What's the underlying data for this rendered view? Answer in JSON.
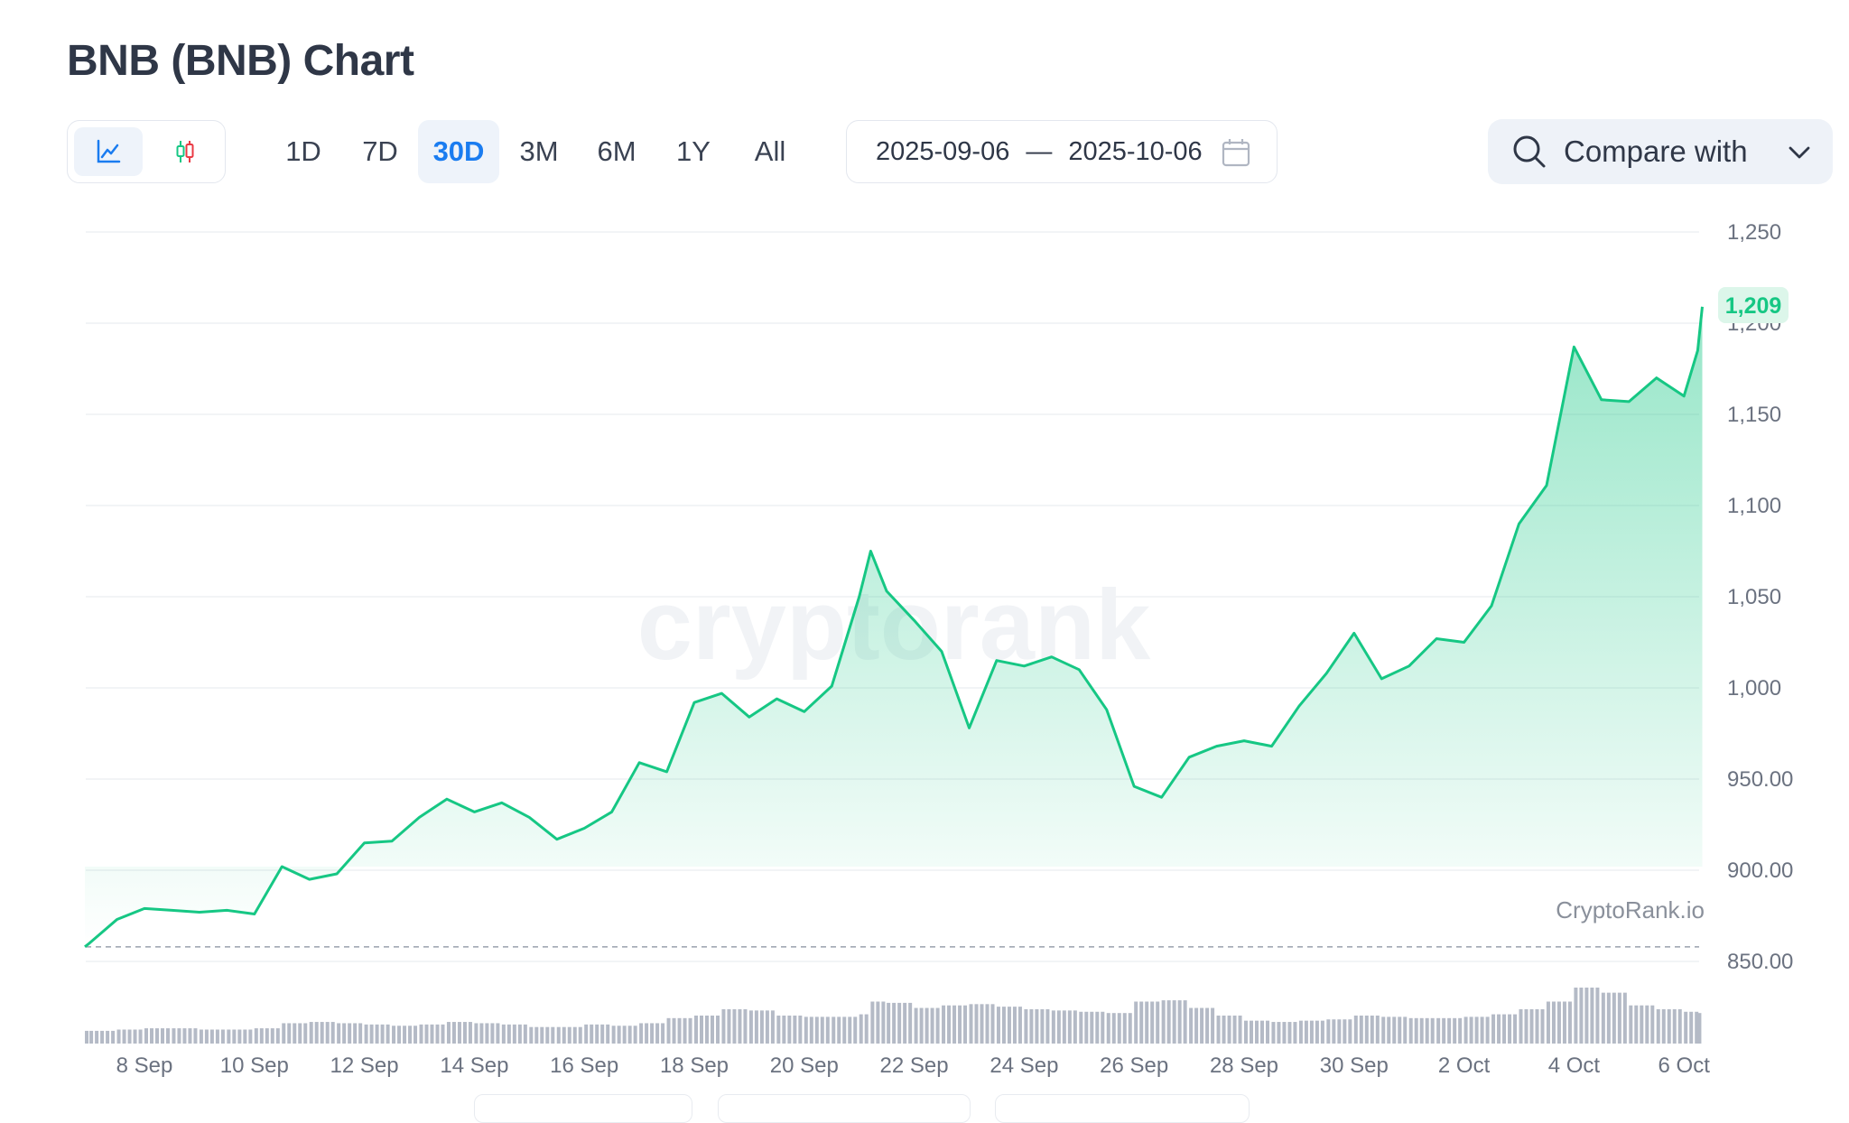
{
  "header": {
    "title": "BNB (BNB) Chart"
  },
  "chart_type_toggle": [
    {
      "id": "line",
      "icon": "line-chart-icon",
      "active": true
    },
    {
      "id": "candles",
      "icon": "candlestick-icon",
      "active": false
    }
  ],
  "periods": [
    {
      "label": "1D",
      "active": false
    },
    {
      "label": "7D",
      "active": false
    },
    {
      "label": "30D",
      "active": true
    },
    {
      "label": "3M",
      "active": false
    },
    {
      "label": "6M",
      "active": false
    },
    {
      "label": "1Y",
      "active": false
    },
    {
      "label": "All",
      "active": false
    }
  ],
  "date_range": {
    "from": "2025-09-06",
    "separator": "—",
    "to": "2025-10-06",
    "icon": "calendar-icon"
  },
  "compare": {
    "label": "Compare with",
    "icon": "search-icon",
    "chevron": "chevron-down-icon"
  },
  "colors": {
    "accent": "#1a7cf0",
    "line": "#16c784",
    "volume": "#b4bac6",
    "up": "#16c784",
    "down": "#ea3943"
  },
  "watermark": "cryptorank",
  "attribution": "CryptoRank.io",
  "chart_data": {
    "type": "area",
    "ylim": [
      850,
      1250
    ],
    "yticks": [
      "1,250",
      "1,200",
      "1,150",
      "1,100",
      "1,050",
      "1,000",
      "950.00",
      "900.00",
      "850.00"
    ],
    "ytick_values": [
      1250,
      1200,
      1150,
      1100,
      1050,
      1000,
      950,
      900,
      850
    ],
    "xticks": [
      "8 Sep",
      "10 Sep",
      "12 Sep",
      "14 Sep",
      "16 Sep",
      "18 Sep",
      "20 Sep",
      "22 Sep",
      "24 Sep",
      "26 Sep",
      "28 Sep",
      "30 Sep",
      "2 Oct",
      "4 Oct",
      "6 Oct"
    ],
    "xtick_dates": [
      "2025-09-08",
      "2025-09-10",
      "2025-09-12",
      "2025-09-14",
      "2025-09-16",
      "2025-09-18",
      "2025-09-20",
      "2025-09-22",
      "2025-09-24",
      "2025-09-26",
      "2025-09-28",
      "2025-09-30",
      "2025-10-02",
      "2025-10-04",
      "2025-10-06"
    ],
    "grid": true,
    "baseline_price": 858,
    "current_price_label": "1,209",
    "current_price": 1209,
    "x": [
      "2025-09-06T22:00",
      "2025-09-07T00:00",
      "2025-09-07T12:00",
      "2025-09-08T00:00",
      "2025-09-08T12:00",
      "2025-09-09T00:00",
      "2025-09-09T12:00",
      "2025-09-10T00:00",
      "2025-09-10T12:00",
      "2025-09-11T00:00",
      "2025-09-11T12:00",
      "2025-09-12T00:00",
      "2025-09-12T12:00",
      "2025-09-13T00:00",
      "2025-09-13T12:00",
      "2025-09-14T00:00",
      "2025-09-14T12:00",
      "2025-09-15T00:00",
      "2025-09-15T12:00",
      "2025-09-16T00:00",
      "2025-09-16T12:00",
      "2025-09-17T00:00",
      "2025-09-17T12:00",
      "2025-09-18T00:00",
      "2025-09-18T12:00",
      "2025-09-19T00:00",
      "2025-09-19T12:00",
      "2025-09-20T00:00",
      "2025-09-20T12:00",
      "2025-09-21T00:00",
      "2025-09-21T05:00",
      "2025-09-21T12:00",
      "2025-09-22T00:00",
      "2025-09-22T12:00",
      "2025-09-23T00:00",
      "2025-09-23T12:00",
      "2025-09-24T00:00",
      "2025-09-24T12:00",
      "2025-09-25T00:00",
      "2025-09-25T12:00",
      "2025-09-26T00:00",
      "2025-09-26T12:00",
      "2025-09-27T00:00",
      "2025-09-27T12:00",
      "2025-09-28T00:00",
      "2025-09-28T12:00",
      "2025-09-29T00:00",
      "2025-09-29T12:00",
      "2025-09-30T00:00",
      "2025-09-30T12:00",
      "2025-10-01T00:00",
      "2025-10-01T12:00",
      "2025-10-02T00:00",
      "2025-10-02T12:00",
      "2025-10-03T00:00",
      "2025-10-03T12:00",
      "2025-10-04T00:00",
      "2025-10-04T12:00",
      "2025-10-05T00:00",
      "2025-10-05T12:00",
      "2025-10-06T00:00",
      "2025-10-06T06:00",
      "2025-10-06T08:00"
    ],
    "y": [
      858,
      860,
      873,
      879,
      878,
      877,
      878,
      876,
      902,
      895,
      898,
      915,
      916,
      929,
      939,
      932,
      937,
      929,
      917,
      923,
      932,
      959,
      954,
      992,
      997,
      984,
      994,
      987,
      1001,
      1050,
      1075,
      1053,
      1037,
      1020,
      978,
      1015,
      1012,
      1017,
      1010,
      988,
      946,
      940,
      962,
      968,
      971,
      968,
      990,
      1008,
      1030,
      1005,
      1012,
      1027,
      1025,
      1045,
      1090,
      1111,
      1187,
      1158,
      1157,
      1170,
      1160,
      1185,
      1209
    ],
    "volume_relative": [
      10,
      10,
      11,
      12,
      12,
      11,
      11,
      12,
      16,
      17,
      16,
      15,
      14,
      15,
      17,
      16,
      15,
      13,
      13,
      15,
      14,
      16,
      20,
      22,
      27,
      26,
      22,
      21,
      21,
      23,
      33,
      32,
      28,
      30,
      31,
      29,
      27,
      26,
      25,
      24,
      33,
      34,
      28,
      22,
      18,
      17,
      18,
      19,
      22,
      21,
      20,
      20,
      21,
      23,
      27,
      33,
      44,
      40,
      30,
      27,
      25,
      24,
      24
    ]
  }
}
